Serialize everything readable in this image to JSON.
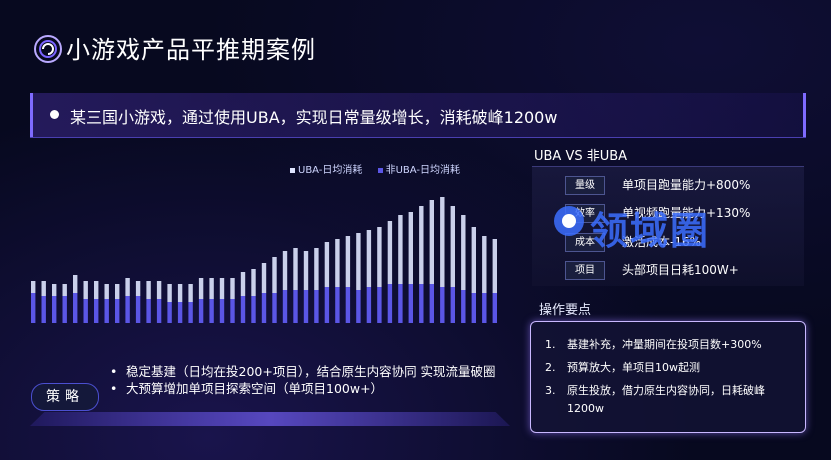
{
  "header": {
    "title": "小游戏产品平推期案例"
  },
  "headline": {
    "text": "某三国小游戏，通过使用UBA，实现日常量级增长，消耗破峰1200w"
  },
  "chart_data": {
    "type": "bar",
    "stacked": true,
    "legend": [
      {
        "label": "UBA-日均消耗",
        "color": "#dfe5ff"
      },
      {
        "label": "非UBA-日均消耗",
        "color": "#5b56e6"
      }
    ],
    "series": [
      {
        "name": "非UBA-日均消耗",
        "color": "#5b56e6",
        "values": [
          10,
          9,
          9,
          9,
          10,
          8,
          8,
          8,
          8,
          9,
          9,
          8,
          8,
          7,
          7,
          7,
          8,
          8,
          8,
          8,
          9,
          9,
          10,
          10,
          11,
          11,
          11,
          11,
          12,
          12,
          12,
          11,
          12,
          12,
          13,
          13,
          13,
          13,
          13,
          12,
          12,
          11,
          10,
          10,
          10
        ]
      },
      {
        "name": "UBA-日均消耗",
        "color": "#dfe5ff",
        "values": [
          4,
          5,
          4,
          4,
          6,
          6,
          6,
          5,
          5,
          6,
          5,
          6,
          6,
          6,
          6,
          6,
          7,
          7,
          7,
          7,
          8,
          9,
          10,
          12,
          13,
          14,
          13,
          14,
          15,
          16,
          17,
          19,
          19,
          20,
          21,
          23,
          24,
          26,
          28,
          30,
          27,
          25,
          22,
          19,
          18
        ]
      }
    ],
    "ylim": [
      0,
      50
    ],
    "grid": false
  },
  "uba": {
    "title": "UBA VS 非UBA",
    "rows": [
      {
        "tag": "量级",
        "value": "单项目跑量能力+800%"
      },
      {
        "tag": "效率",
        "value": "单视频跑量能力+130%"
      },
      {
        "tag": "成本",
        "value": "激活成本-16%"
      },
      {
        "tag": "项目",
        "value": "头部项目日耗100W+"
      }
    ]
  },
  "watermark": {
    "text": "领域圈"
  },
  "ops": {
    "title": "操作要点",
    "items": [
      {
        "num": "1.",
        "text": "基建补充，冲量期间在投项目数+300%"
      },
      {
        "num": "2.",
        "text": "预算放大，单项目10w起测"
      },
      {
        "num": "3.",
        "text": "原生投放，借力原生内容协同，日耗破峰1200w"
      }
    ]
  },
  "strategy": {
    "badge": "策略",
    "bullet": "•",
    "items": [
      "稳定基建（日均在投200+项目），结合原生内容协同 实现流量破圈",
      "大预算增加单项目探索空间（单项目100w+）"
    ]
  },
  "icons": {
    "logo": "logo-icon",
    "watermark": "watermark-logo-icon"
  }
}
